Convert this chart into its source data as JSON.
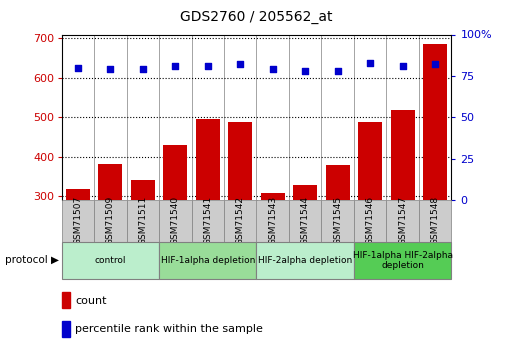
{
  "title": "GDS2760 / 205562_at",
  "samples": [
    "GSM71507",
    "GSM71509",
    "GSM71511",
    "GSM71540",
    "GSM71541",
    "GSM71542",
    "GSM71543",
    "GSM71544",
    "GSM71545",
    "GSM71546",
    "GSM71547",
    "GSM71548"
  ],
  "counts": [
    318,
    382,
    342,
    430,
    495,
    488,
    308,
    328,
    378,
    488,
    518,
    685
  ],
  "percentile_ranks": [
    80,
    79,
    79,
    81,
    81,
    82,
    79,
    78,
    78,
    83,
    81,
    82
  ],
  "bar_color": "#cc0000",
  "dot_color": "#0000cc",
  "ylim_left": [
    290,
    710
  ],
  "ylim_right": [
    0,
    100
  ],
  "yticks_left": [
    300,
    400,
    500,
    600,
    700
  ],
  "yticks_right": [
    0,
    25,
    50,
    75,
    100
  ],
  "grid_values": [
    400,
    500,
    600
  ],
  "bar_bottom": 290,
  "protocol_groups": [
    {
      "label": "control",
      "start": 0,
      "end": 3,
      "color": "#bbeecc"
    },
    {
      "label": "HIF-1alpha depletion",
      "start": 3,
      "end": 6,
      "color": "#99dd99"
    },
    {
      "label": "HIF-2alpha depletion",
      "start": 6,
      "end": 9,
      "color": "#bbeecc"
    },
    {
      "label": "HIF-1alpha HIF-2alpha\ndepletion",
      "start": 9,
      "end": 12,
      "color": "#55cc55"
    }
  ],
  "xlabel_color": "#cc0000",
  "ylabel_right_color": "#0000cc",
  "sample_bg_color": "#cccccc",
  "plot_bg_color": "#ffffff",
  "spine_color": "#000000"
}
